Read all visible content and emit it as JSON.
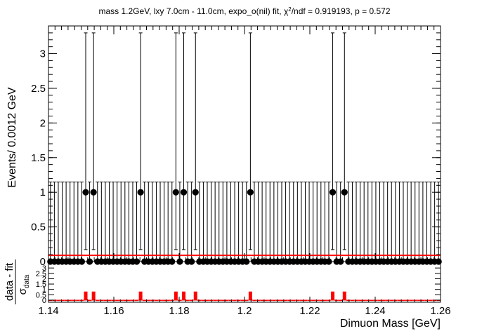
{
  "chart_data": [
    {
      "type": "scatter",
      "title_main": "mass 1.2GeV, lxy 7.0cm - 11.0cm, expo_o(nil) fit, ",
      "title_chi": "χ",
      "title_sup": "2",
      "title_rest": "/ndf = 0.919193, p = 0.572",
      "xlabel": "Dimuon Mass [GeV]",
      "ylabel": "Events/ 0.0012 GeV",
      "xlim": [
        1.14,
        1.26
      ],
      "ylim": [
        0,
        3.4
      ],
      "x_ticks": [
        "1.14",
        "1.16",
        "1.18",
        "1.2",
        "1.22",
        "1.24",
        "1.26"
      ],
      "y_ticks": [
        "0",
        "0.5",
        "1",
        "1.5",
        "2",
        "2.5",
        "3"
      ],
      "bin_width": 0.0012,
      "bin_start": 1.14,
      "n_bins": 100,
      "nonzero_bins": [
        9,
        11,
        23,
        32,
        34,
        37,
        51,
        72,
        75
      ],
      "nonzero_value": 1,
      "nonzero_err_low": 0.827,
      "nonzero_err_high": 2.3,
      "zero_err_high": 1.148,
      "fit_value": 0.09,
      "fit_color": "#ff0000",
      "marker_color": "#000000"
    },
    {
      "type": "bar",
      "ylabel_num": "data - fit",
      "ylabel_den": "σ",
      "ylabel_den_sub": "data",
      "y_ticks": [
        "0",
        "0.5",
        "1",
        "1.5",
        "2",
        "2.5",
        "3"
      ],
      "ylim": [
        -0.2,
        3.6
      ],
      "pull_values_nonzero": 0.8,
      "pull_values_zero": -0.08,
      "bar_color": "#ff0000"
    }
  ]
}
